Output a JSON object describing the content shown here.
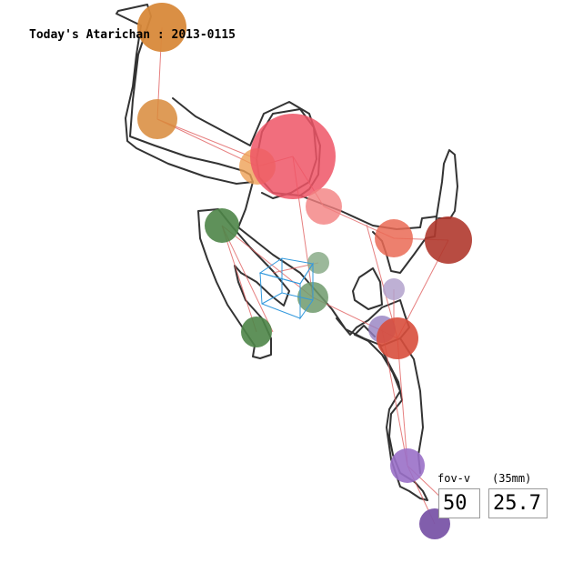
{
  "title": "Today's Atarichan : 2013-0115",
  "fov": {
    "label": "fov-v",
    "unit_label": "(35mm)",
    "value": "50",
    "mm_value": "25.7"
  },
  "colors": {
    "outline": "#333333",
    "bone": "#e06060",
    "cube": "#3399dd",
    "head": "#ee5566",
    "orange": "#d8893a",
    "green": "#4e8548",
    "red": "#d84e3c",
    "darkred": "#b0392e",
    "purple": "#9a70c8",
    "lavender": "#b3a2cc"
  }
}
